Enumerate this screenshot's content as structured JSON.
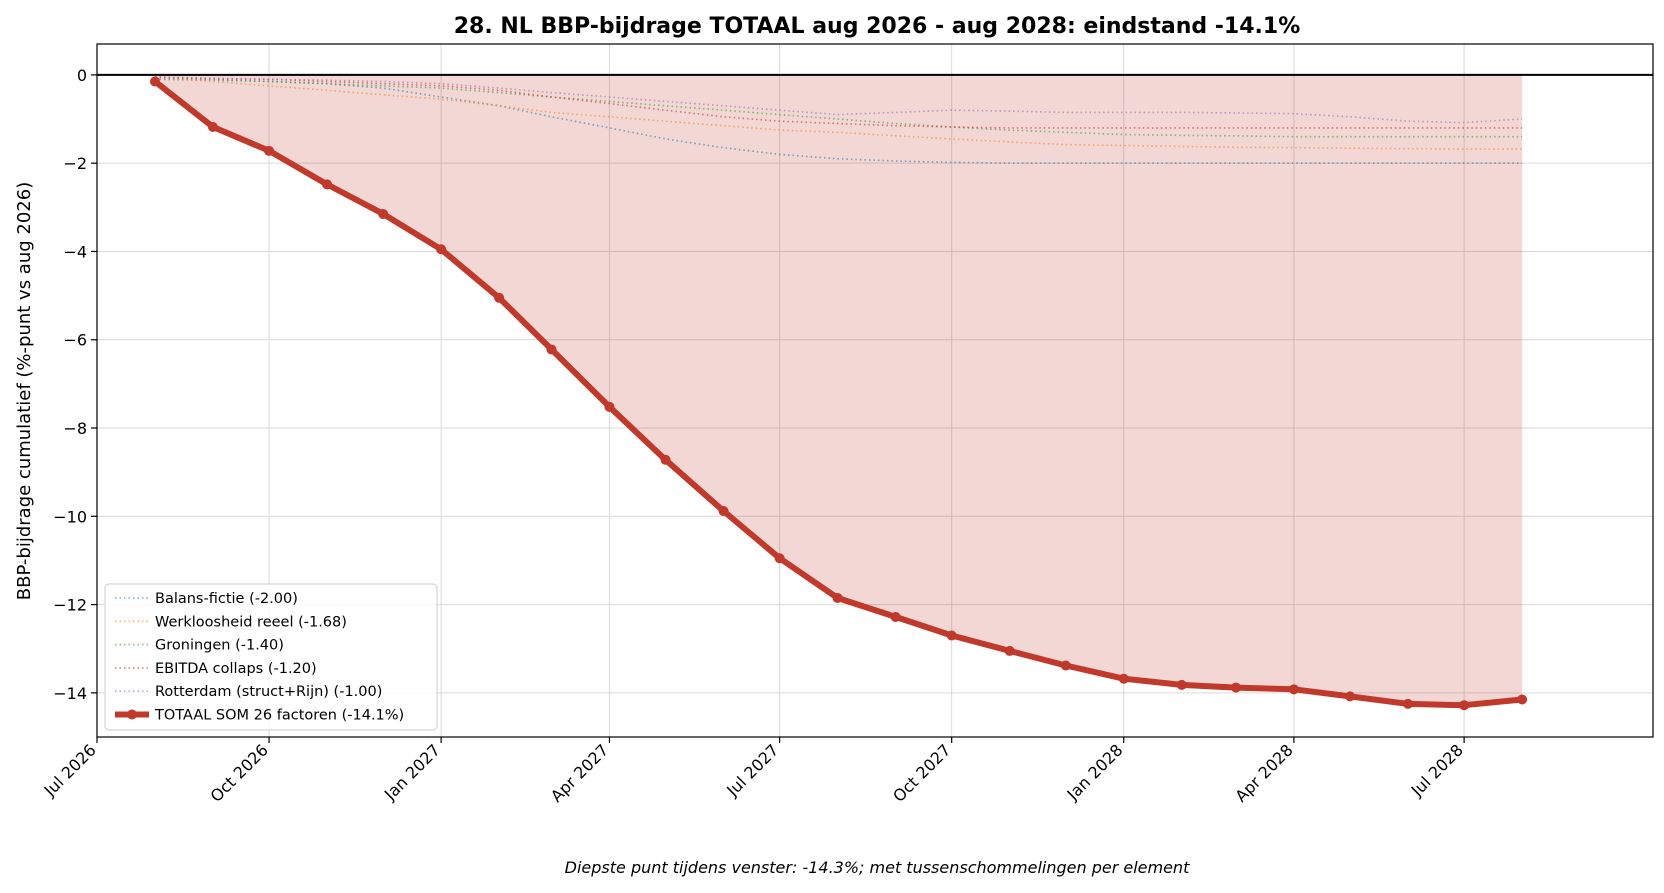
{
  "chart_data": {
    "type": "line",
    "title": "28. NL BBP-bijdrage TOTAAL aug 2026 - aug 2028: eindstand -14.1%",
    "xlabel": "",
    "ylabel": "BBP-bijdrage cumulatief (%-punt vs aug 2026)",
    "caption": "Diepste punt tijdens venster: -14.3%; met tussenschommelingen per element",
    "ylim": [
      -15,
      0.7
    ],
    "xlim": [
      "2026-07-01",
      "2028-10-10"
    ],
    "grid": true,
    "legend_position": "lower-left",
    "yticks": [
      0,
      -2,
      -4,
      -6,
      -8,
      -10,
      -12,
      -14
    ],
    "xticks": [
      {
        "date": "2026-07-01",
        "label": "Jul 2026"
      },
      {
        "date": "2026-10-01",
        "label": "Oct 2026"
      },
      {
        "date": "2027-01-01",
        "label": "Jan 2027"
      },
      {
        "date": "2027-04-01",
        "label": "Apr 2027"
      },
      {
        "date": "2027-07-01",
        "label": "Jul 2027"
      },
      {
        "date": "2027-10-01",
        "label": "Oct 2027"
      },
      {
        "date": "2028-01-01",
        "label": "Jan 2028"
      },
      {
        "date": "2028-04-01",
        "label": "Apr 2028"
      },
      {
        "date": "2028-07-01",
        "label": "Jul 2028"
      }
    ],
    "x": [
      "2026-08-01",
      "2026-09-01",
      "2026-10-01",
      "2026-11-01",
      "2026-12-01",
      "2027-01-01",
      "2027-02-01",
      "2027-03-01",
      "2027-04-01",
      "2027-05-01",
      "2027-06-01",
      "2027-07-01",
      "2027-08-01",
      "2027-09-01",
      "2027-10-01",
      "2027-11-01",
      "2027-12-01",
      "2028-01-01",
      "2028-02-01",
      "2028-03-01",
      "2028-04-01",
      "2028-05-01",
      "2028-06-01",
      "2028-07-01",
      "2028-08-01"
    ],
    "series": [
      {
        "name": "Balans-fictie (-2.00)",
        "color": "#1f77b4",
        "style": "dotted",
        "values": [
          -0.1,
          -0.12,
          -0.15,
          -0.2,
          -0.3,
          -0.5,
          -0.7,
          -0.95,
          -1.2,
          -1.45,
          -1.65,
          -1.8,
          -1.9,
          -1.95,
          -1.98,
          -2.0,
          -2.0,
          -2.0,
          -2.0,
          -2.0,
          -2.0,
          -2.0,
          -2.0,
          -2.0,
          -2.0
        ]
      },
      {
        "name": "Werkloosheid reeel (-1.68)",
        "color": "#ff7f0e",
        "style": "dotted",
        "values": [
          -0.05,
          -0.15,
          -0.25,
          -0.35,
          -0.45,
          -0.55,
          -0.7,
          -0.85,
          -0.95,
          -1.05,
          -1.15,
          -1.25,
          -1.3,
          -1.38,
          -1.45,
          -1.52,
          -1.58,
          -1.6,
          -1.62,
          -1.64,
          -1.65,
          -1.66,
          -1.67,
          -1.68,
          -1.68
        ]
      },
      {
        "name": "Groningen (-1.40)",
        "color": "#2ca02c",
        "style": "dotted",
        "values": [
          -0.05,
          -0.1,
          -0.15,
          -0.2,
          -0.25,
          -0.3,
          -0.4,
          -0.5,
          -0.6,
          -0.7,
          -0.8,
          -0.9,
          -1.0,
          -1.1,
          -1.18,
          -1.25,
          -1.3,
          -1.35,
          -1.37,
          -1.38,
          -1.4,
          -1.4,
          -1.4,
          -1.4,
          -1.4
        ]
      },
      {
        "name": "EBITDA collaps (-1.20)",
        "color": "#d62728",
        "style": "dotted",
        "values": [
          -0.05,
          -0.08,
          -0.1,
          -0.15,
          -0.2,
          -0.25,
          -0.35,
          -0.5,
          -0.65,
          -0.8,
          -0.95,
          -1.05,
          -1.1,
          -1.15,
          -1.18,
          -1.2,
          -1.2,
          -1.2,
          -1.2,
          -1.2,
          -1.2,
          -1.2,
          -1.2,
          -1.2,
          -1.2
        ]
      },
      {
        "name": "Rotterdam (struct+Rijn) (-1.00)",
        "color": "#9467bd",
        "style": "dotted",
        "values": [
          -0.05,
          -0.08,
          -0.1,
          -0.12,
          -0.15,
          -0.2,
          -0.3,
          -0.4,
          -0.5,
          -0.6,
          -0.7,
          -0.8,
          -0.9,
          -0.85,
          -0.8,
          -0.82,
          -0.85,
          -0.85,
          -0.85,
          -0.86,
          -0.88,
          -0.95,
          -1.05,
          -1.08,
          -1.0
        ]
      },
      {
        "name": "TOTAAL SOM 26 factoren (-14.1%)",
        "color": "#c0392b",
        "style": "solid-markers",
        "values": [
          -0.15,
          -1.18,
          -1.72,
          -2.48,
          -3.15,
          -3.95,
          -5.05,
          -6.22,
          -7.52,
          -8.72,
          -9.88,
          -10.95,
          -11.85,
          -12.28,
          -12.7,
          -13.05,
          -13.38,
          -13.68,
          -13.82,
          -13.88,
          -13.92,
          -14.08,
          -14.25,
          -14.28,
          -14.15
        ]
      }
    ]
  }
}
